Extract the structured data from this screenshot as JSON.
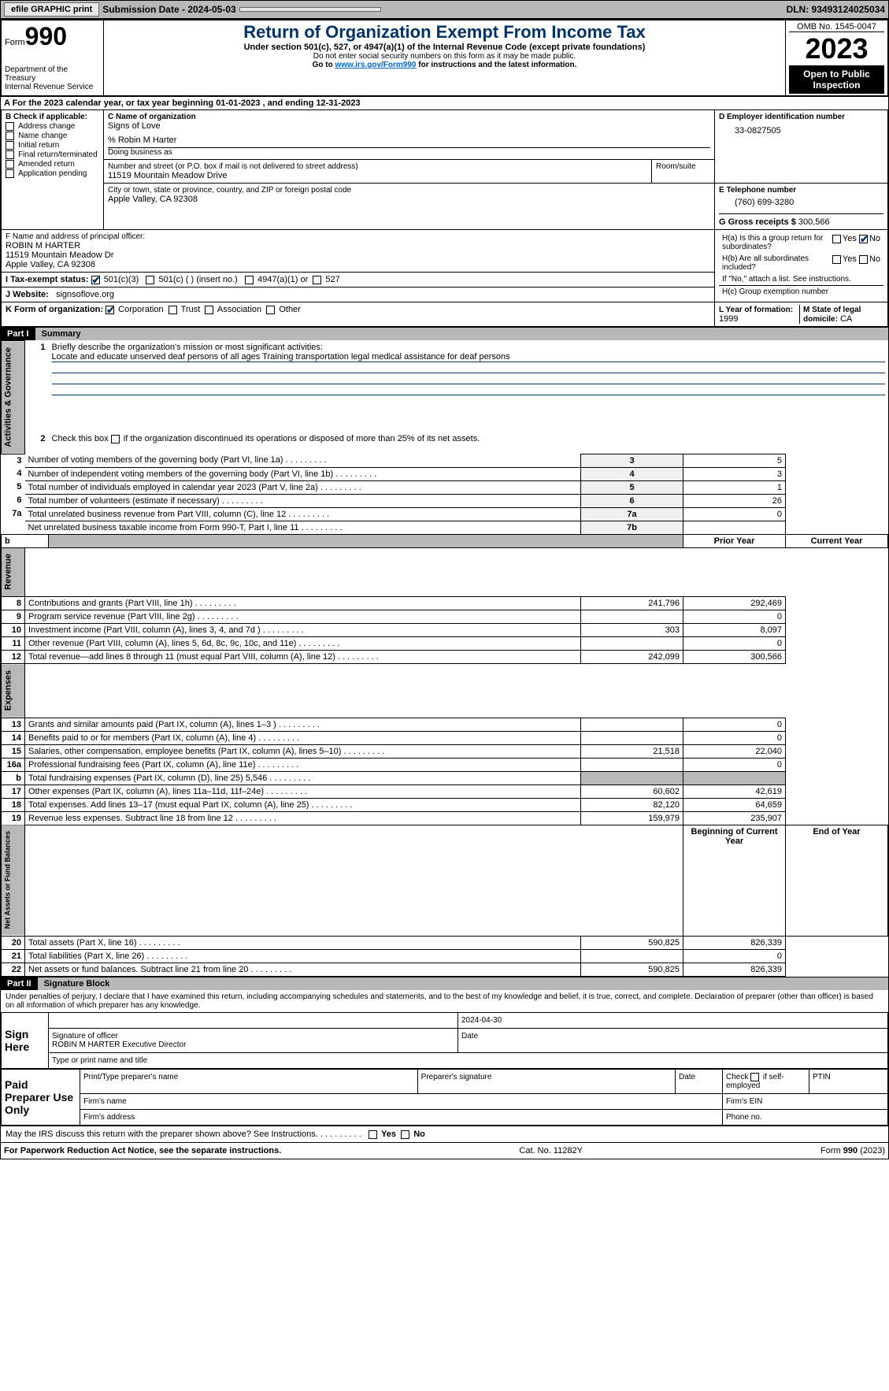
{
  "topbar": {
    "efile_btn": "efile GRAPHIC print",
    "submission_label": "Submission Date - 2024-05-03",
    "dln": "DLN: 93493124025034"
  },
  "header": {
    "form_prefix": "Form",
    "form_number": "990",
    "title": "Return of Organization Exempt From Income Tax",
    "subtitle": "Under section 501(c), 527, or 4947(a)(1) of the Internal Revenue Code (except private foundations)",
    "ssn_note": "Do not enter social security numbers on this form as it may be made public.",
    "goto": "Go to ",
    "goto_link": "www.irs.gov/Form990",
    "goto_suffix": " for instructions and the latest information.",
    "dept": "Department of the Treasury",
    "irs": "Internal Revenue Service",
    "omb": "OMB No. 1545-0047",
    "year": "2023",
    "open": "Open to Public Inspection"
  },
  "section_a": {
    "text": "A For the 2023 calendar year, or tax year beginning 01-01-2023   , and ending 12-31-2023"
  },
  "box_b": {
    "label": "B Check if applicable:",
    "items": [
      "Address change",
      "Name change",
      "Initial return",
      "Final return/terminated",
      "Amended return",
      "Application pending"
    ]
  },
  "box_c": {
    "label": "C Name of organization",
    "name": "Signs of Love",
    "care_of": "% Robin M Harter",
    "dba_label": "Doing business as",
    "street_label": "Number and street (or P.O. box if mail is not delivered to street address)",
    "street": "11519 Mountain Meadow Drive",
    "room_label": "Room/suite",
    "city_label": "City or town, state or province, country, and ZIP or foreign postal code",
    "city": "Apple Valley, CA  92308"
  },
  "box_d": {
    "label": "D Employer identification number",
    "value": "33-0827505"
  },
  "box_e": {
    "label": "E Telephone number",
    "value": "(760) 699-3280"
  },
  "box_g": {
    "label": "G Gross receipts $",
    "value": "300,566"
  },
  "box_f": {
    "label": "F  Name and address of principal officer:",
    "name": "ROBIN M HARTER",
    "street": "11519 Mountain Meadow Dr",
    "city": "Apple Valley, CA  92308"
  },
  "box_h": {
    "a_label": "H(a)  Is this a group return for subordinates?",
    "b_label": "H(b)  Are all subordinates included?",
    "b_note": "If \"No,\" attach a list. See instructions.",
    "c_label": "H(c)  Group exemption number",
    "yes": "Yes",
    "no": "No"
  },
  "tax_exempt": {
    "i_label": "I   Tax-exempt status:",
    "opt1": "501(c)(3)",
    "opt2": "501(c) (  ) (insert no.)",
    "opt3": "4947(a)(1) or",
    "opt4": "527"
  },
  "website": {
    "label": "J   Website:",
    "value": "signsoflove.org"
  },
  "box_k": {
    "label": "K Form of organization:",
    "opts": [
      "Corporation",
      "Trust",
      "Association",
      "Other"
    ]
  },
  "box_l": {
    "label": "L Year of formation:",
    "value": "1999"
  },
  "box_m": {
    "label": "M State of legal domicile:",
    "value": "CA"
  },
  "part1": {
    "hdr": "Part I",
    "title": "Summary",
    "vert_labels": [
      "Activities & Governance",
      "Revenue",
      "Expenses",
      "Net Assets or Fund Balances"
    ],
    "line1": "Briefly describe the organization's mission or most significant activities:",
    "mission": "Locate and educate unserved deaf persons of all ages Training transportation legal medical assistance for deaf persons",
    "line2": "Check this box      if the organization discontinued its operations or disposed of more than 25% of its net assets.",
    "rows": [
      {
        "n": "3",
        "label": "Number of voting members of the governing body (Part VI, line 1a)",
        "box": "3",
        "val": "5"
      },
      {
        "n": "4",
        "label": "Number of independent voting members of the governing body (Part VI, line 1b)",
        "box": "4",
        "val": "3"
      },
      {
        "n": "5",
        "label": "Total number of individuals employed in calendar year 2023 (Part V, line 2a)",
        "box": "5",
        "val": "1"
      },
      {
        "n": "6",
        "label": "Total number of volunteers (estimate if necessary)",
        "box": "6",
        "val": "26"
      },
      {
        "n": "7a",
        "label": "Total unrelated business revenue from Part VIII, column (C), line 12",
        "box": "7a",
        "val": "0"
      },
      {
        "n": "",
        "label": "Net unrelated business taxable income from Form 990-T, Part I, line 11",
        "box": "7b",
        "val": ""
      }
    ],
    "col_hdrs": {
      "prior": "Prior Year",
      "current": "Current Year",
      "begin": "Beginning of Current Year",
      "end": "End of Year"
    },
    "rev_rows": [
      {
        "n": "8",
        "label": "Contributions and grants (Part VIII, line 1h)",
        "prior": "241,796",
        "curr": "292,469"
      },
      {
        "n": "9",
        "label": "Program service revenue (Part VIII, line 2g)",
        "prior": "",
        "curr": "0"
      },
      {
        "n": "10",
        "label": "Investment income (Part VIII, column (A), lines 3, 4, and 7d )",
        "prior": "303",
        "curr": "8,097"
      },
      {
        "n": "11",
        "label": "Other revenue (Part VIII, column (A), lines 5, 6d, 8c, 9c, 10c, and 11e)",
        "prior": "",
        "curr": "0"
      },
      {
        "n": "12",
        "label": "Total revenue—add lines 8 through 11 (must equal Part VIII, column (A), line 12)",
        "prior": "242,099",
        "curr": "300,566"
      }
    ],
    "exp_rows": [
      {
        "n": "13",
        "label": "Grants and similar amounts paid (Part IX, column (A), lines 1–3 )",
        "prior": "",
        "curr": "0"
      },
      {
        "n": "14",
        "label": "Benefits paid to or for members (Part IX, column (A), line 4)",
        "prior": "",
        "curr": "0"
      },
      {
        "n": "15",
        "label": "Salaries, other compensation, employee benefits (Part IX, column (A), lines 5–10)",
        "prior": "21,518",
        "curr": "22,040"
      },
      {
        "n": "16a",
        "label": "Professional fundraising fees (Part IX, column (A), line 11e)",
        "prior": "",
        "curr": "0"
      },
      {
        "n": "b",
        "label": "Total fundraising expenses (Part IX, column (D), line 25) 5,546",
        "prior": "shaded",
        "curr": "shaded"
      },
      {
        "n": "17",
        "label": "Other expenses (Part IX, column (A), lines 11a–11d, 11f–24e)",
        "prior": "60,602",
        "curr": "42,619"
      },
      {
        "n": "18",
        "label": "Total expenses. Add lines 13–17 (must equal Part IX, column (A), line 25)",
        "prior": "82,120",
        "curr": "64,659"
      },
      {
        "n": "19",
        "label": "Revenue less expenses. Subtract line 18 from line 12",
        "prior": "159,979",
        "curr": "235,907"
      }
    ],
    "net_rows": [
      {
        "n": "20",
        "label": "Total assets (Part X, line 16)",
        "prior": "590,825",
        "curr": "826,339"
      },
      {
        "n": "21",
        "label": "Total liabilities (Part X, line 26)",
        "prior": "",
        "curr": "0"
      },
      {
        "n": "22",
        "label": "Net assets or fund balances. Subtract line 21 from line 20",
        "prior": "590,825",
        "curr": "826,339"
      }
    ]
  },
  "part2": {
    "hdr": "Part II",
    "title": "Signature Block",
    "penalty": "Under penalties of perjury, I declare that I have examined this return, including accompanying schedules and statements, and to the best of my knowledge and belief, it is true, correct, and complete. Declaration of preparer (other than officer) is based on all information of which preparer has any knowledge.",
    "sign_here": "Sign Here",
    "date": "2024-04-30",
    "sig_label": "Signature of officer",
    "officer": "ROBIN M HARTER  Executive Director",
    "type_label": "Type or print name and title",
    "paid": "Paid Preparer Use Only",
    "prep_name": "Print/Type preparer's name",
    "prep_sig": "Preparer's signature",
    "date_label": "Date",
    "self_emp": "Check       if self-employed",
    "ptin": "PTIN",
    "firm_name": "Firm's name",
    "firm_ein": "Firm's EIN",
    "firm_addr": "Firm's address",
    "phone": "Phone no.",
    "discuss": "May the IRS discuss this return with the preparer shown above? See Instructions."
  },
  "footer": {
    "paperwork": "For Paperwork Reduction Act Notice, see the separate instructions.",
    "cat": "Cat. No. 11282Y",
    "form": "Form 990 (2023)"
  }
}
